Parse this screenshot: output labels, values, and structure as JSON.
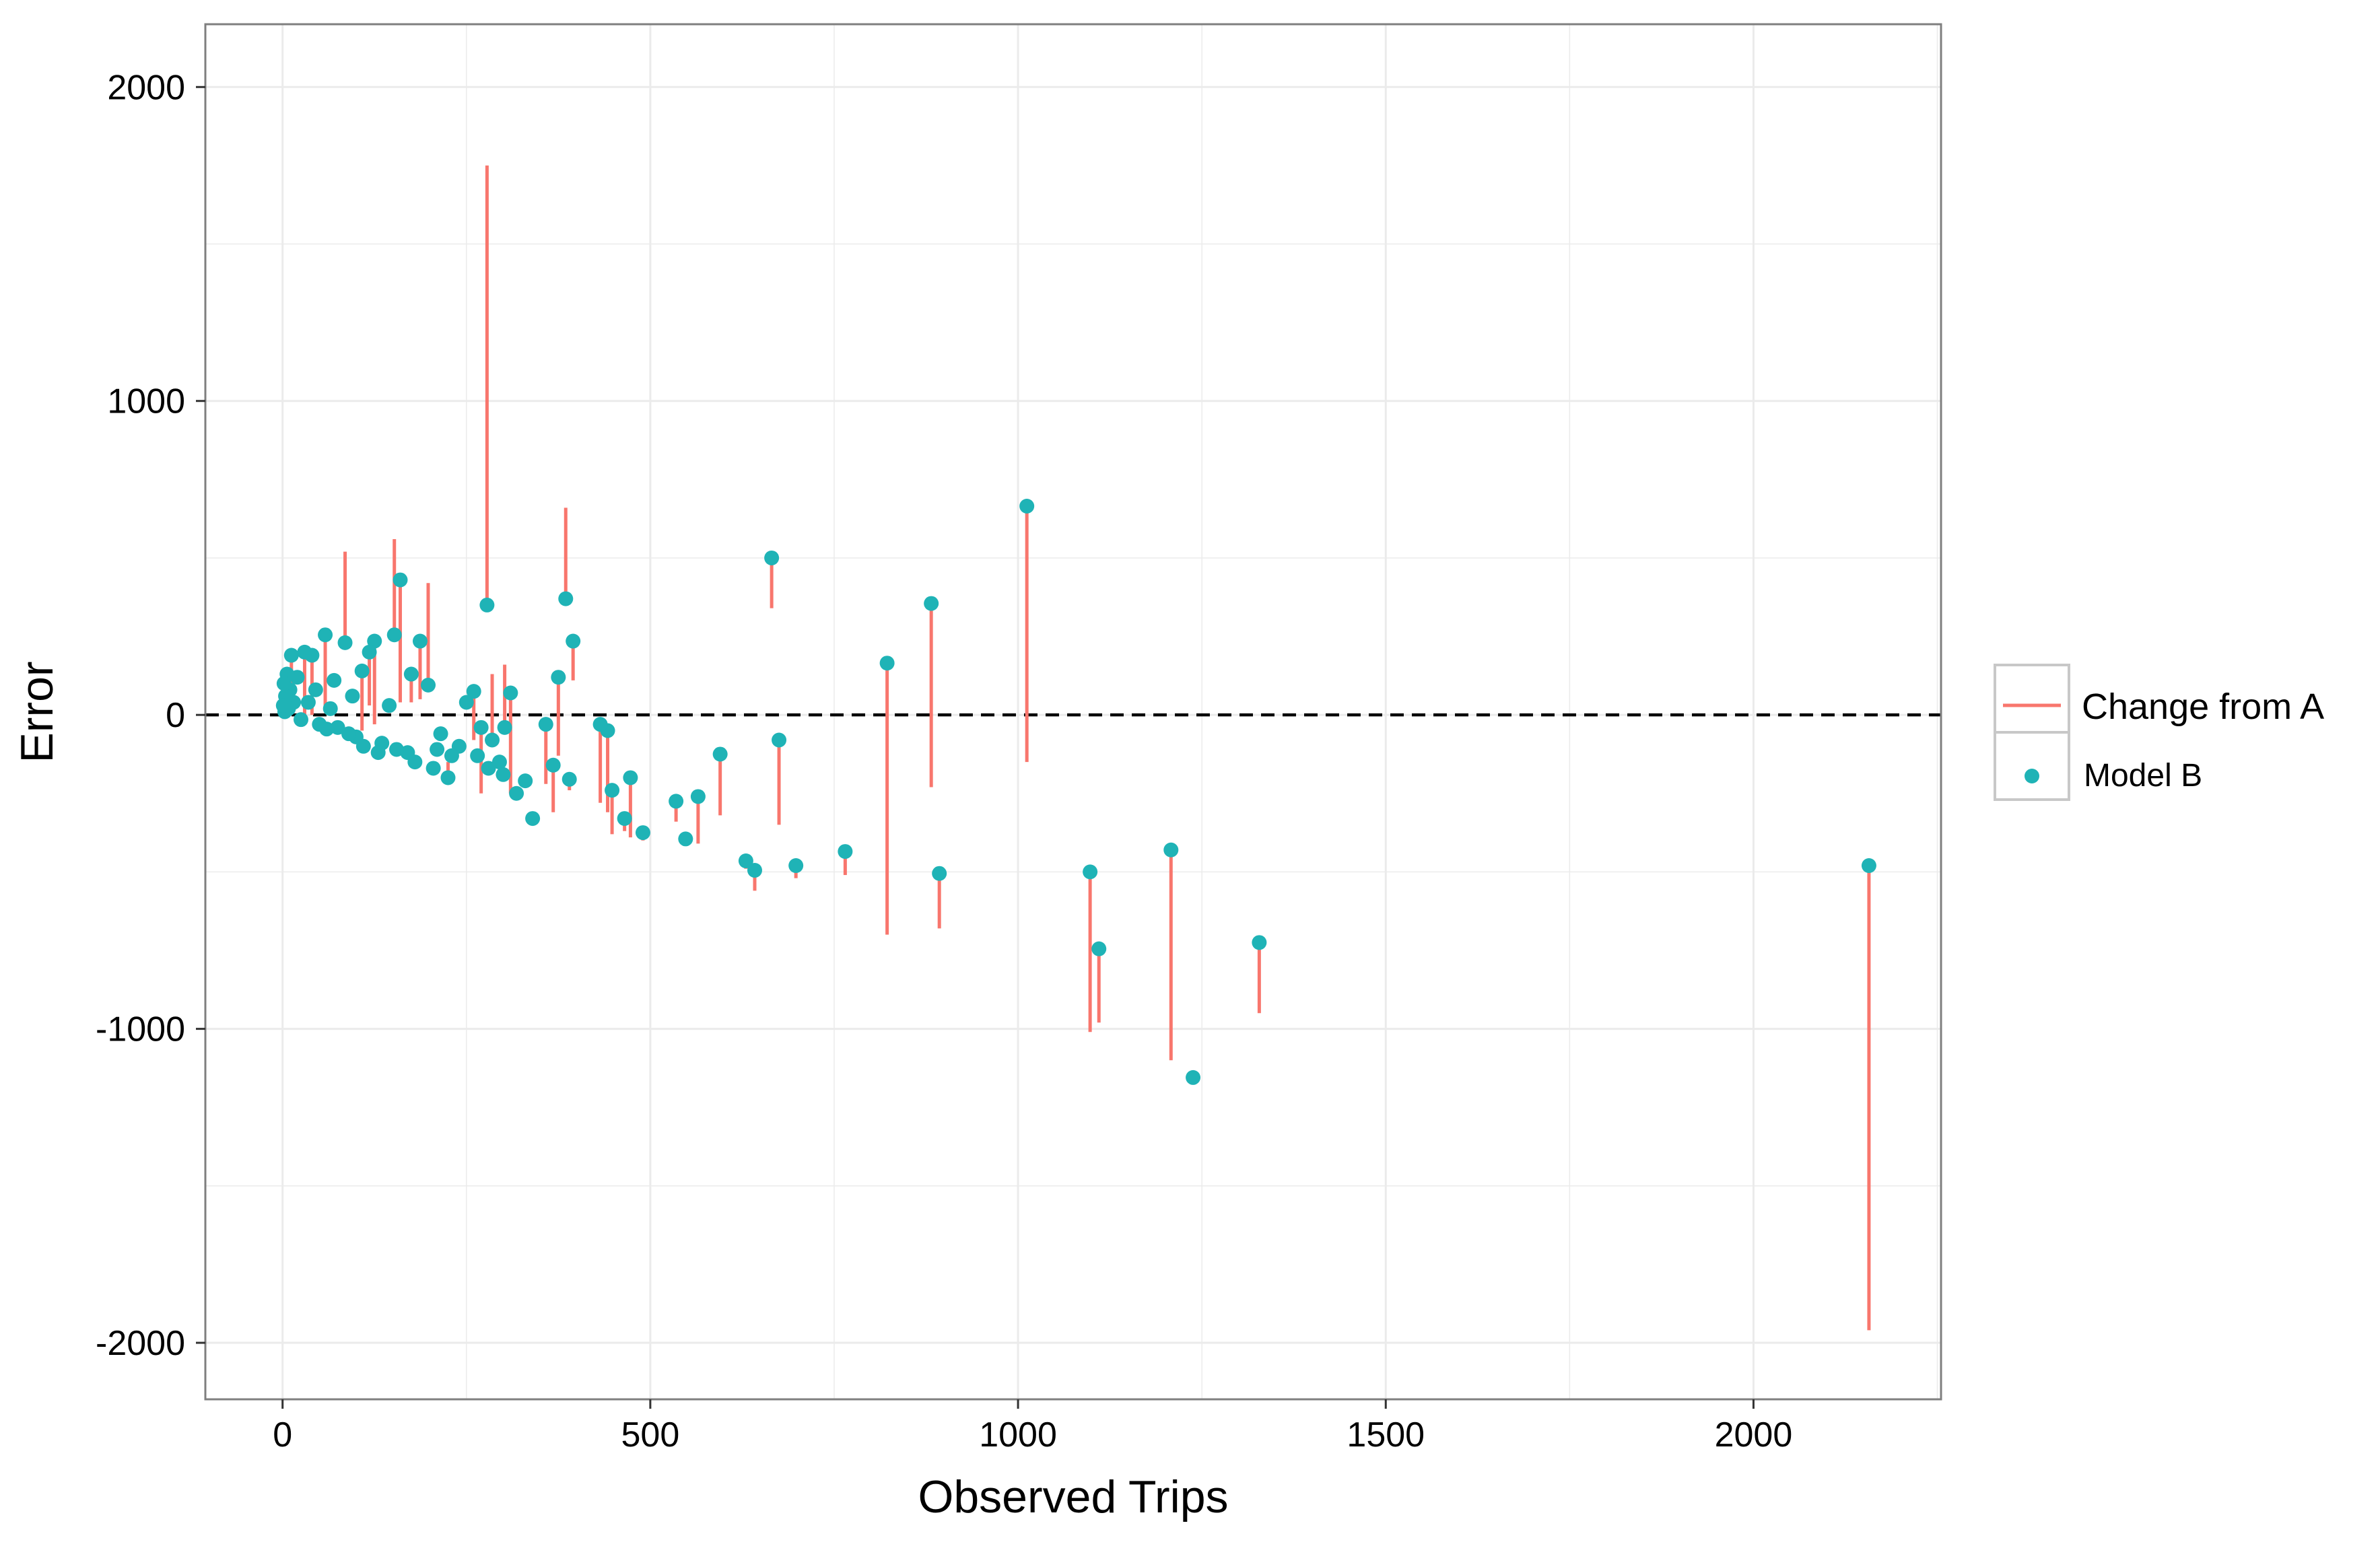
{
  "chart_data": {
    "type": "scatter",
    "title": "",
    "xlabel": "Observed Trips",
    "ylabel": "Error",
    "xlim": [
      -105,
      2255
    ],
    "ylim": [
      -2180,
      2200
    ],
    "x_ticks": [
      0,
      500,
      1000,
      1500,
      2000
    ],
    "x_tick_labels": [
      "0",
      "500",
      "1000",
      "1500",
      "2000"
    ],
    "y_ticks": [
      -2000,
      -1000,
      0,
      1000,
      2000
    ],
    "y_tick_labels": [
      "-2000",
      "-1000",
      "0",
      "1000",
      "2000"
    ],
    "reference_line": {
      "y": 0,
      "style": "dashed",
      "color": "#000000"
    },
    "legend": {
      "position": "right",
      "entries": [
        {
          "label": "Change from A",
          "kind": "line",
          "color": "#F8766D"
        },
        {
          "label": "Model B",
          "kind": "point",
          "color": "#1FB3B6"
        }
      ]
    },
    "colors": {
      "segment": "#F8766D",
      "point": "#1FB3B6",
      "grid": "#EBEBEB",
      "panel_border": "#7F7F7F"
    },
    "series": [
      {
        "name": "Change from A",
        "kind": "segment",
        "description": "vertical segment from Model A error to Model B error at each observed value",
        "points": [
          {
            "x": 278,
            "y_a": 1750,
            "y_b": 350
          },
          {
            "x": 385,
            "y_a": 660,
            "y_b": 370
          },
          {
            "x": 665,
            "y_a": 340,
            "y_b": 500
          },
          {
            "x": 1012,
            "y_a": -150,
            "y_b": 665
          },
          {
            "x": 882,
            "y_a": -230,
            "y_b": 355
          },
          {
            "x": 822,
            "y_a": -700,
            "y_b": 165
          },
          {
            "x": 675,
            "y_a": -350,
            "y_b": -80
          },
          {
            "x": 1098,
            "y_a": -1010,
            "y_b": -500
          },
          {
            "x": 1110,
            "y_a": -980,
            "y_b": -745
          },
          {
            "x": 1208,
            "y_a": -1100,
            "y_b": -430
          },
          {
            "x": 1328,
            "y_a": -950,
            "y_b": -725
          },
          {
            "x": 2157,
            "y_a": -1960,
            "y_b": -480
          },
          {
            "x": 893,
            "y_a": -680,
            "y_b": -505
          },
          {
            "x": 765,
            "y_a": -510,
            "y_b": -435
          },
          {
            "x": 698,
            "y_a": -520,
            "y_b": -480
          },
          {
            "x": 642,
            "y_a": -560,
            "y_b": -495
          },
          {
            "x": 630,
            "y_a": -490,
            "y_b": -465
          },
          {
            "x": 595,
            "y_a": -320,
            "y_b": -125
          },
          {
            "x": 565,
            "y_a": -410,
            "y_b": -260
          },
          {
            "x": 535,
            "y_a": -340,
            "y_b": -275
          },
          {
            "x": 490,
            "y_a": -400,
            "y_b": -375
          },
          {
            "x": 473,
            "y_a": -390,
            "y_b": -200
          },
          {
            "x": 465,
            "y_a": -370,
            "y_b": -330
          },
          {
            "x": 448,
            "y_a": -380,
            "y_b": -240
          },
          {
            "x": 442,
            "y_a": -310,
            "y_b": -50
          },
          {
            "x": 432,
            "y_a": -280,
            "y_b": -30
          },
          {
            "x": 395,
            "y_a": 110,
            "y_b": 235
          },
          {
            "x": 390,
            "y_a": -240,
            "y_b": -205
          },
          {
            "x": 375,
            "y_a": -130,
            "y_b": 120
          },
          {
            "x": 358,
            "y_a": -220,
            "y_b": -30
          },
          {
            "x": 368,
            "y_a": -310,
            "y_b": -160
          },
          {
            "x": 310,
            "y_a": -250,
            "y_b": 70
          },
          {
            "x": 302,
            "y_a": 160,
            "y_b": -40
          },
          {
            "x": 285,
            "y_a": 130,
            "y_b": -80
          },
          {
            "x": 270,
            "y_a": -250,
            "y_b": -40
          },
          {
            "x": 260,
            "y_a": -80,
            "y_b": 75
          },
          {
            "x": 225,
            "y_a": -150,
            "y_b": -200
          },
          {
            "x": 198,
            "y_a": 420,
            "y_b": 95
          },
          {
            "x": 187,
            "y_a": 50,
            "y_b": 235
          },
          {
            "x": 175,
            "y_a": 40,
            "y_b": 130
          },
          {
            "x": 160,
            "y_a": 40,
            "y_b": 430
          },
          {
            "x": 152,
            "y_a": 560,
            "y_b": 255
          },
          {
            "x": 125,
            "y_a": -30,
            "y_b": 235
          },
          {
            "x": 118,
            "y_a": 30,
            "y_b": 200
          },
          {
            "x": 108,
            "y_a": -50,
            "y_b": 140
          },
          {
            "x": 85,
            "y_a": 520,
            "y_b": 230
          },
          {
            "x": 58,
            "y_a": 20,
            "y_b": 255
          },
          {
            "x": 40,
            "y_a": 0,
            "y_b": 190
          },
          {
            "x": 30,
            "y_a": -10,
            "y_b": 200
          },
          {
            "x": 12,
            "y_a": 5,
            "y_b": 190
          }
        ]
      },
      {
        "name": "Model B",
        "kind": "point",
        "points": [
          {
            "x": 278,
            "y": 350
          },
          {
            "x": 385,
            "y": 370
          },
          {
            "x": 665,
            "y": 500
          },
          {
            "x": 1012,
            "y": 665
          },
          {
            "x": 882,
            "y": 355
          },
          {
            "x": 822,
            "y": 165
          },
          {
            "x": 675,
            "y": -80
          },
          {
            "x": 1098,
            "y": -500
          },
          {
            "x": 1110,
            "y": -745
          },
          {
            "x": 1208,
            "y": -430
          },
          {
            "x": 1328,
            "y": -725
          },
          {
            "x": 1238,
            "y": -1155
          },
          {
            "x": 2157,
            "y": -480
          },
          {
            "x": 893,
            "y": -505
          },
          {
            "x": 765,
            "y": -435
          },
          {
            "x": 698,
            "y": -480
          },
          {
            "x": 642,
            "y": -495
          },
          {
            "x": 630,
            "y": -465
          },
          {
            "x": 595,
            "y": -125
          },
          {
            "x": 565,
            "y": -260
          },
          {
            "x": 548,
            "y": -395
          },
          {
            "x": 535,
            "y": -275
          },
          {
            "x": 490,
            "y": -375
          },
          {
            "x": 473,
            "y": -200
          },
          {
            "x": 465,
            "y": -330
          },
          {
            "x": 448,
            "y": -240
          },
          {
            "x": 442,
            "y": -50
          },
          {
            "x": 432,
            "y": -30
          },
          {
            "x": 395,
            "y": 235
          },
          {
            "x": 390,
            "y": -205
          },
          {
            "x": 375,
            "y": 120
          },
          {
            "x": 358,
            "y": -30
          },
          {
            "x": 368,
            "y": -160
          },
          {
            "x": 340,
            "y": -330
          },
          {
            "x": 330,
            "y": -210
          },
          {
            "x": 318,
            "y": -250
          },
          {
            "x": 310,
            "y": 70
          },
          {
            "x": 302,
            "y": -40
          },
          {
            "x": 295,
            "y": -150
          },
          {
            "x": 285,
            "y": -80
          },
          {
            "x": 270,
            "y": -40
          },
          {
            "x": 260,
            "y": 75
          },
          {
            "x": 250,
            "y": 40
          },
          {
            "x": 240,
            "y": -100
          },
          {
            "x": 225,
            "y": -200
          },
          {
            "x": 210,
            "y": -110
          },
          {
            "x": 198,
            "y": 95
          },
          {
            "x": 187,
            "y": 235
          },
          {
            "x": 175,
            "y": 130
          },
          {
            "x": 170,
            "y": -120
          },
          {
            "x": 160,
            "y": 430
          },
          {
            "x": 152,
            "y": 255
          },
          {
            "x": 145,
            "y": 30
          },
          {
            "x": 135,
            "y": -90
          },
          {
            "x": 125,
            "y": 235
          },
          {
            "x": 118,
            "y": 200
          },
          {
            "x": 108,
            "y": 140
          },
          {
            "x": 100,
            "y": -70
          },
          {
            "x": 95,
            "y": 60
          },
          {
            "x": 85,
            "y": 230
          },
          {
            "x": 75,
            "y": -40
          },
          {
            "x": 70,
            "y": 110
          },
          {
            "x": 65,
            "y": 20
          },
          {
            "x": 58,
            "y": 255
          },
          {
            "x": 50,
            "y": -30
          },
          {
            "x": 45,
            "y": 80
          },
          {
            "x": 40,
            "y": 190
          },
          {
            "x": 35,
            "y": 40
          },
          {
            "x": 30,
            "y": 200
          },
          {
            "x": 25,
            "y": -15
          },
          {
            "x": 20,
            "y": 120
          },
          {
            "x": 15,
            "y": 40
          },
          {
            "x": 12,
            "y": 190
          },
          {
            "x": 10,
            "y": 80
          },
          {
            "x": 8,
            "y": 20
          },
          {
            "x": 6,
            "y": 130
          },
          {
            "x": 4,
            "y": 60
          },
          {
            "x": 3,
            "y": 10
          },
          {
            "x": 2,
            "y": 100
          },
          {
            "x": 1,
            "y": 30
          },
          {
            "x": 155,
            "y": -110
          },
          {
            "x": 180,
            "y": -150
          },
          {
            "x": 205,
            "y": -170
          },
          {
            "x": 230,
            "y": -130
          },
          {
            "x": 110,
            "y": -100
          },
          {
            "x": 90,
            "y": -60
          },
          {
            "x": 60,
            "y": -45
          },
          {
            "x": 130,
            "y": -120
          },
          {
            "x": 265,
            "y": -130
          },
          {
            "x": 280,
            "y": -170
          },
          {
            "x": 300,
            "y": -190
          },
          {
            "x": 215,
            "y": -60
          }
        ]
      }
    ]
  }
}
